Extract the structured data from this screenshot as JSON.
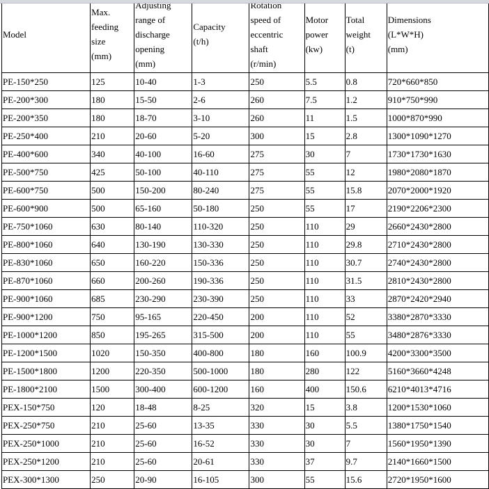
{
  "table": {
    "headers": [
      [
        "Model"
      ],
      [
        "Max.",
        "feeding",
        "size",
        "(mm)"
      ],
      [
        "Adjusting",
        "range of",
        "discharge",
        "opening",
        "(mm)"
      ],
      [
        "Capacity",
        "(t/h)"
      ],
      [
        "Rotation",
        "speed of",
        "eccentric",
        "shaft",
        "(r/min)"
      ],
      [
        "Motor",
        "power",
        "(kw)"
      ],
      [
        "Total",
        "weight",
        "(t)"
      ],
      [
        "Dimensions",
        "(L*W*H)",
        "(mm)"
      ]
    ],
    "rows": [
      [
        "PE-150*250",
        "125",
        "10-40",
        "1-3",
        "250",
        "5.5",
        "0.8",
        "720*660*850"
      ],
      [
        "PE-200*300",
        "180",
        "15-50",
        "2-6",
        "260",
        "7.5",
        "1.2",
        "910*750*990"
      ],
      [
        "PE-200*350",
        "180",
        "18-70",
        "3-10",
        "260",
        "11",
        "1.5",
        "1000*870*990"
      ],
      [
        "PE-250*400",
        "210",
        "20-60",
        "5-20",
        "300",
        "15",
        "2.8",
        "1300*1090*1270"
      ],
      [
        "PE-400*600",
        "340",
        "40-100",
        "16-60",
        "275",
        "30",
        "7",
        "1730*1730*1630"
      ],
      [
        "PE-500*750",
        "425",
        "50-100",
        "40-110",
        "275",
        "55",
        "12",
        "1980*2080*1870"
      ],
      [
        "PE-600*750",
        "500",
        "150-200",
        "80-240",
        "275",
        "55",
        "15.8",
        "2070*2000*1920"
      ],
      [
        "PE-600*900",
        "500",
        "65-160",
        "50-180",
        "250",
        "55",
        "17",
        "2190*2206*2300"
      ],
      [
        "PE-750*1060",
        "630",
        "80-140",
        "110-320",
        "250",
        "110",
        "29",
        "2660*2430*2800"
      ],
      [
        "PE-800*1060",
        "640",
        "130-190",
        "130-330",
        "250",
        "110",
        "29.8",
        "2710*2430*2800"
      ],
      [
        "PE-830*1060",
        "650",
        "160-220",
        "150-336",
        "250",
        "110",
        "30.7",
        "2740*2430*2800"
      ],
      [
        "PE-870*1060",
        "660",
        "200-260",
        "190-336",
        "250",
        "110",
        "31.5",
        "2810*2430*2800"
      ],
      [
        "PE-900*1060",
        "685",
        "230-290",
        "230-390",
        "250",
        "110",
        "33",
        "2870*2420*2940"
      ],
      [
        "PE-900*1200",
        "750",
        "95-165",
        "220-450",
        "200",
        "110",
        "52",
        "3380*2870*3330"
      ],
      [
        "PE-1000*1200",
        "850",
        "195-265",
        "315-500",
        "200",
        "110",
        "55",
        "3480*2876*3330"
      ],
      [
        "PE-1200*1500",
        "1020",
        "150-350",
        "400-800",
        "180",
        "160",
        "100.9",
        "4200*3300*3500"
      ],
      [
        "PE-1500*1800",
        "1200",
        "220-350",
        "500-1000",
        "180",
        "280",
        "122",
        "5160*3660*4248"
      ],
      [
        "PE-1800*2100",
        "1500",
        "300-400",
        "600-1200",
        "160",
        "400",
        "150.6",
        "6210*4013*4716"
      ],
      [
        "PEX-150*750",
        "120",
        "18-48",
        "8-25",
        "320",
        "15",
        "3.8",
        "1200*1530*1060"
      ],
      [
        "PEX-250*750",
        "210",
        "25-60",
        "13-35",
        "330",
        "30",
        "5.5",
        "1380*1750*1540"
      ],
      [
        "PEX-250*1000",
        "210",
        "25-60",
        "16-52",
        "330",
        "30",
        "7",
        "1560*1950*1390"
      ],
      [
        "PEX-250*1200",
        "210",
        "25-60",
        "20-61",
        "330",
        "37",
        "9.7",
        "2140*1660*1500"
      ],
      [
        "PEX-300*1300",
        "250",
        "20-90",
        "16-105",
        "300",
        "55",
        "15.6",
        "2720*1950*1600"
      ]
    ]
  }
}
